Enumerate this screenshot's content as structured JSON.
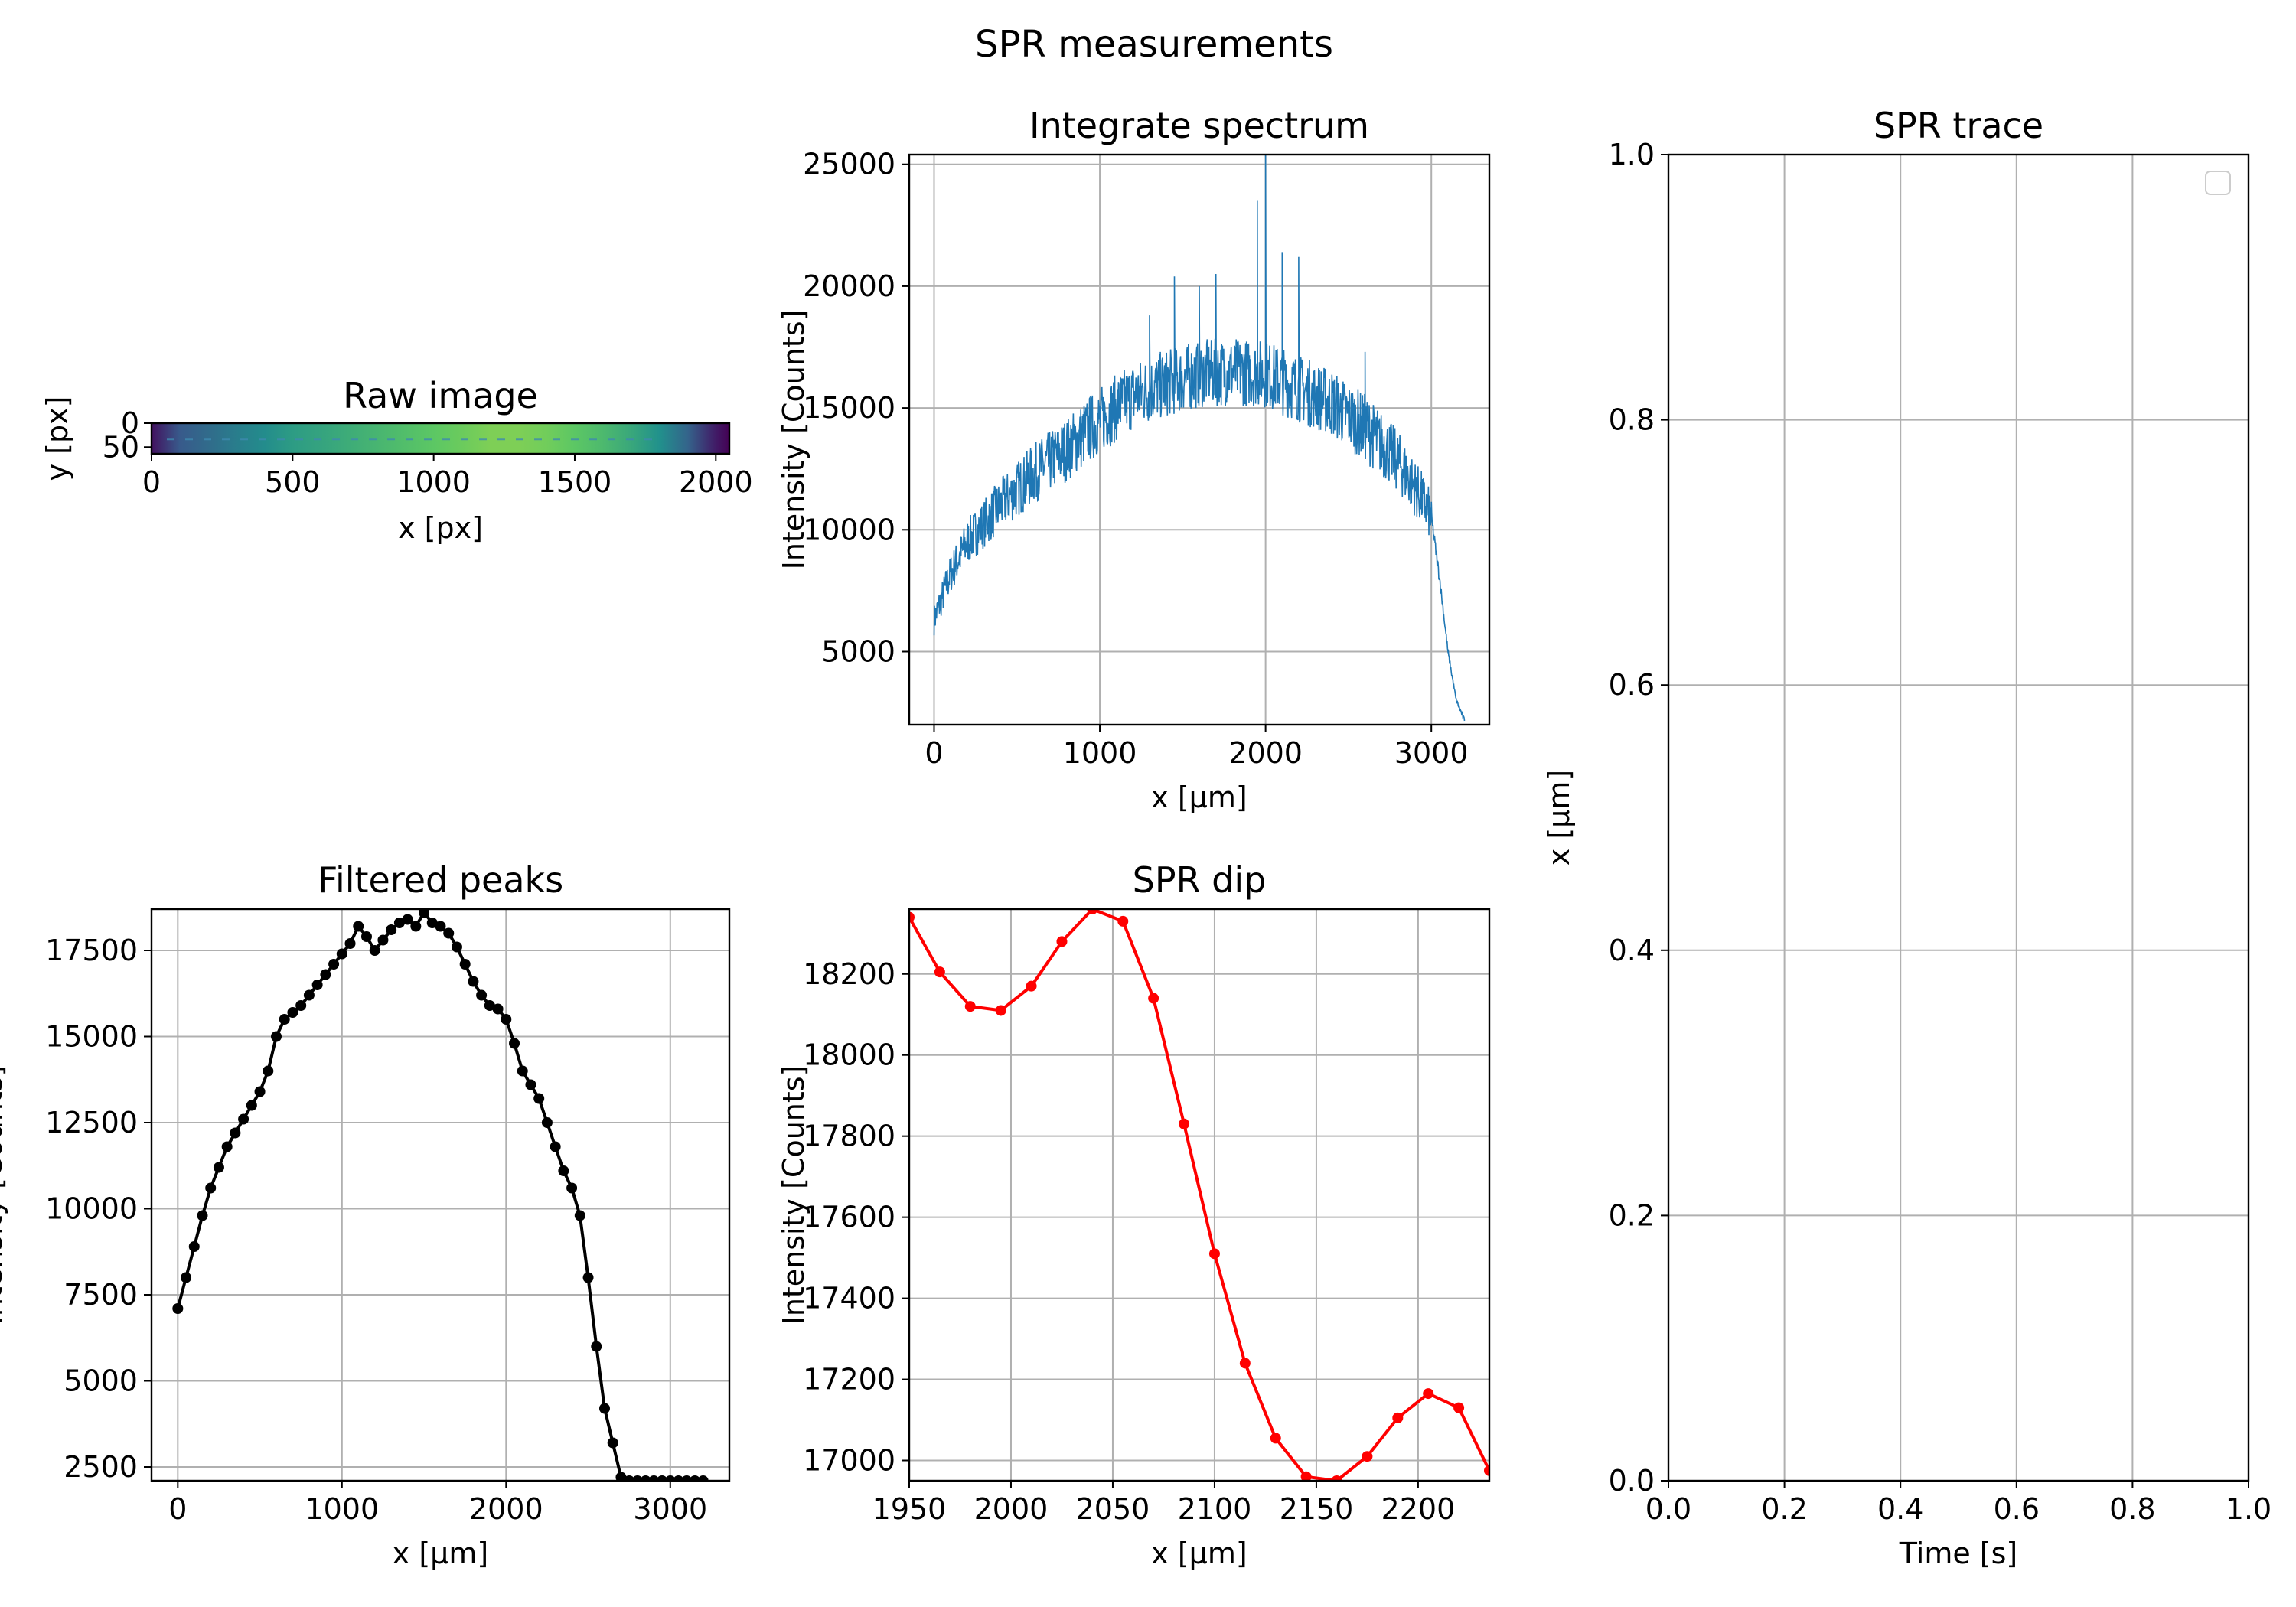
{
  "figure": {
    "suptitle": "SPR measurements"
  },
  "colors": {
    "spectrum": "#1f77b4",
    "peaks": "#000000",
    "dip": "#ff0000",
    "grid": "#b0b0b0"
  },
  "chart_data": [
    {
      "id": "raw",
      "type": "heatmap",
      "title": "Raw image",
      "xlabel": "x [px]",
      "ylabel": "y [px]",
      "xlim": [
        0,
        2048
      ],
      "ylim": [
        64,
        0
      ],
      "xticks": [
        0,
        500,
        1000,
        1500,
        2000
      ],
      "yticks": [
        0,
        50
      ],
      "colormap": "viridis",
      "column_profile": [
        [
          0,
          0.05
        ],
        [
          100,
          0.28
        ],
        [
          200,
          0.35
        ],
        [
          300,
          0.42
        ],
        [
          400,
          0.48
        ],
        [
          500,
          0.55
        ],
        [
          600,
          0.58
        ],
        [
          700,
          0.62
        ],
        [
          800,
          0.66
        ],
        [
          900,
          0.7
        ],
        [
          1000,
          0.74
        ],
        [
          1100,
          0.77
        ],
        [
          1200,
          0.8
        ],
        [
          1300,
          0.8
        ],
        [
          1400,
          0.78
        ],
        [
          1500,
          0.74
        ],
        [
          1600,
          0.68
        ],
        [
          1700,
          0.6
        ],
        [
          1800,
          0.5
        ],
        [
          1900,
          0.32
        ],
        [
          2000,
          0.08
        ],
        [
          2048,
          0.0
        ]
      ]
    },
    {
      "id": "spectrum",
      "type": "line",
      "title": "Integrate spectrum",
      "xlabel": "x [μm]",
      "ylabel": "Intensity [Counts]",
      "xlim": [
        -150,
        3350
      ],
      "ylim": [
        2000,
        25400
      ],
      "xticks": [
        0,
        1000,
        2000,
        3000
      ],
      "yticks": [
        5000,
        10000,
        15000,
        20000,
        25000
      ],
      "grid": true,
      "noise_amplitude": 1400,
      "envelope": [
        [
          0,
          6300
        ],
        [
          100,
          8200
        ],
        [
          200,
          9500
        ],
        [
          400,
          11000
        ],
        [
          600,
          12300
        ],
        [
          800,
          13300
        ],
        [
          1000,
          14500
        ],
        [
          1200,
          15500
        ],
        [
          1400,
          16000
        ],
        [
          1600,
          16400
        ],
        [
          1800,
          16500
        ],
        [
          2000,
          16400
        ],
        [
          2200,
          15800
        ],
        [
          2400,
          15200
        ],
        [
          2600,
          14200
        ],
        [
          2800,
          12800
        ],
        [
          2950,
          11200
        ],
        [
          3000,
          10500
        ],
        [
          3050,
          8000
        ],
        [
          3100,
          5000
        ],
        [
          3150,
          3000
        ],
        [
          3200,
          2200
        ]
      ],
      "spikes": [
        [
          1450,
          20400
        ],
        [
          1600,
          20000
        ],
        [
          1700,
          20500
        ],
        [
          1950,
          23500
        ],
        [
          2000,
          25400
        ],
        [
          2100,
          21400
        ],
        [
          2200,
          21200
        ],
        [
          2600,
          17300
        ],
        [
          1300,
          18800
        ]
      ]
    },
    {
      "id": "trace",
      "type": "line",
      "title": "SPR trace",
      "xlabel": "Time [s]",
      "ylabel": "x [μm]",
      "xlim": [
        0,
        1
      ],
      "ylim": [
        0,
        1
      ],
      "xticks": [
        "0.0",
        "0.2",
        "0.4",
        "0.6",
        "0.8",
        "1.0"
      ],
      "yticks": [
        "0.0",
        "0.2",
        "0.4",
        "0.6",
        "0.8",
        "1.0"
      ],
      "grid": true,
      "legend": "top-right",
      "series": []
    },
    {
      "id": "peaks",
      "type": "line",
      "title": "Filtered peaks",
      "xlabel": "x [μm]",
      "ylabel": "Intensity [Counts]",
      "xlim": [
        -160,
        3360
      ],
      "ylim": [
        2100,
        18700
      ],
      "xticks": [
        0,
        1000,
        2000,
        3000
      ],
      "yticks": [
        2500,
        5000,
        7500,
        10000,
        12500,
        15000,
        17500
      ],
      "grid": true,
      "markers": true,
      "x": [
        0,
        50,
        100,
        150,
        200,
        250,
        300,
        350,
        400,
        450,
        500,
        550,
        600,
        650,
        700,
        750,
        800,
        850,
        900,
        950,
        1000,
        1050,
        1100,
        1150,
        1200,
        1250,
        1300,
        1350,
        1400,
        1450,
        1500,
        1550,
        1600,
        1650,
        1700,
        1750,
        1800,
        1850,
        1900,
        1950,
        2000,
        2050,
        2100,
        2150,
        2200,
        2250,
        2300,
        2350,
        2400,
        2450,
        2500,
        2550,
        2600,
        2650,
        2700,
        2750,
        2800,
        2850,
        2900,
        2950,
        3000,
        3050,
        3100,
        3150,
        3200
      ],
      "y": [
        7100,
        8000,
        8900,
        9800,
        10600,
        11200,
        11800,
        12200,
        12600,
        13000,
        13400,
        14000,
        15000,
        15500,
        15700,
        15900,
        16200,
        16500,
        16800,
        17100,
        17400,
        17700,
        18200,
        17900,
        17500,
        17800,
        18100,
        18300,
        18400,
        18200,
        18600,
        18300,
        18200,
        18000,
        17600,
        17100,
        16600,
        16200,
        15900,
        15800,
        15500,
        14800,
        14000,
        13600,
        13200,
        12500,
        11800,
        11100,
        10600,
        9800,
        8000,
        6000,
        4200,
        3200,
        2200,
        2100,
        2100,
        2100,
        2100,
        2100,
        2100,
        2100,
        2100,
        2100,
        2100
      ]
    },
    {
      "id": "dip",
      "type": "line",
      "title": "SPR dip",
      "xlabel": "x [μm]",
      "ylabel": "Intensity [Counts]",
      "xlim": [
        1950,
        2235
      ],
      "ylim": [
        16950,
        18360
      ],
      "xticks": [
        1950,
        2000,
        2050,
        2100,
        2150,
        2200
      ],
      "yticks": [
        17000,
        17200,
        17400,
        17600,
        17800,
        18000,
        18200
      ],
      "grid": true,
      "markers": true,
      "x": [
        1950,
        1965,
        1980,
        1995,
        2010,
        2025,
        2040,
        2055,
        2070,
        2085,
        2100,
        2115,
        2130,
        2145,
        2160,
        2175,
        2190,
        2205,
        2220,
        2235
      ],
      "y": [
        18340,
        18205,
        18120,
        18110,
        18170,
        18280,
        18360,
        18330,
        18140,
        17830,
        17510,
        17240,
        17055,
        16960,
        16950,
        17010,
        17105,
        17165,
        17130,
        16975
      ]
    }
  ]
}
